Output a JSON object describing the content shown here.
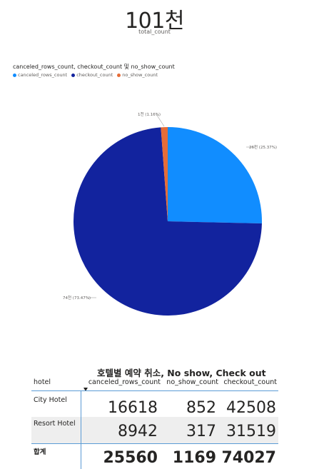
{
  "card": {
    "value": "101천",
    "label": "total_count"
  },
  "chart_data": {
    "type": "pie",
    "title": "canceled_rows_count, checkout_count 및 no_show_count",
    "legend": [
      {
        "name": "canceled_rows_count",
        "color": "#118dff"
      },
      {
        "name": "checkout_count",
        "color": "#12239e"
      },
      {
        "name": "no_show_count",
        "color": "#e66c37"
      }
    ],
    "slices": [
      {
        "name": "canceled_rows_count",
        "value": 25560,
        "label": "26천 (25.37%)",
        "color": "#118dff"
      },
      {
        "name": "checkout_count",
        "value": 74027,
        "label": "74천 (73.47%)",
        "color": "#12239e"
      },
      {
        "name": "no_show_count",
        "value": 1169,
        "label": "1천 (1.16%)",
        "color": "#e66c37"
      }
    ],
    "legend_position": "top-left"
  },
  "matrix": {
    "title": "호텔별 예약 취소, No show, Check out",
    "row_header": "hotel",
    "columns": [
      "canceled_rows_count",
      "no_show_count",
      "checkout_count"
    ],
    "rows": [
      {
        "label": "City Hotel",
        "values": [
          "16618",
          "852",
          "42508"
        ]
      },
      {
        "label": "Resort Hotel",
        "values": [
          "8942",
          "317",
          "31519"
        ]
      }
    ],
    "total": {
      "label": "합계",
      "values": [
        "25560",
        "1169",
        "74027"
      ]
    }
  }
}
